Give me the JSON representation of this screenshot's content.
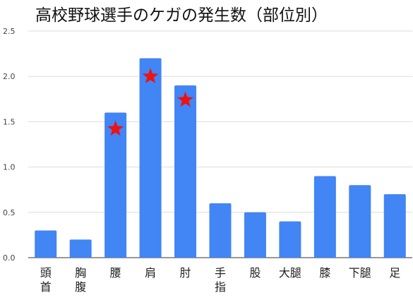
{
  "chart_data": {
    "type": "bar",
    "title": "高校野球選手のケガの発生数（部位別）",
    "xlabel": "",
    "ylabel": "",
    "categories": [
      [
        "頭",
        "首"
      ],
      [
        "胸",
        "腹"
      ],
      [
        "腰"
      ],
      [
        "肩"
      ],
      [
        "肘"
      ],
      [
        "手",
        "指"
      ],
      [
        "股"
      ],
      [
        "大腿"
      ],
      [
        "膝"
      ],
      [
        "下腿"
      ],
      [
        "足"
      ]
    ],
    "values": [
      0.3,
      0.2,
      1.6,
      2.2,
      1.9,
      0.6,
      0.5,
      0.4,
      0.9,
      0.8,
      0.7
    ],
    "highlighted": [
      {
        "category": "腰",
        "value": 1.42
      },
      {
        "category": "肩",
        "value": 2.0
      },
      {
        "category": "肘",
        "value": 1.74
      }
    ],
    "ylim": [
      0,
      2.5
    ],
    "yticks": [
      "0.0",
      "0.5",
      "1.0",
      "1.5",
      "2.0",
      "2.5"
    ],
    "grid": true,
    "legend": "none",
    "colors": {
      "bar": "#4285f4",
      "star": "#ee1111",
      "grid": "#dddddd",
      "axis": "#333333"
    }
  }
}
